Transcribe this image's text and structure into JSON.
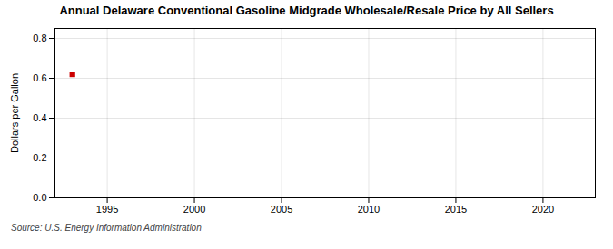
{
  "chart_data": {
    "type": "scatter",
    "title": "Annual Delaware Conventional Gasoline Midgrade Wholesale/Resale Price by All Sellers",
    "ylabel": "Dollars per Gallon",
    "source": "Source: U.S. Energy Information Administration",
    "x": [
      1993
    ],
    "values": [
      0.62
    ],
    "color": "#cc0000",
    "marker": "square",
    "xlim": [
      1992,
      2023
    ],
    "ylim": [
      0.0,
      0.85
    ],
    "xticks": [
      1995,
      2000,
      2005,
      2010,
      2015,
      2020
    ],
    "yticks": [
      {
        "value": 0.0,
        "label": "0.0"
      },
      0.2,
      0.4,
      0.6,
      0.8
    ],
    "grid": true
  }
}
